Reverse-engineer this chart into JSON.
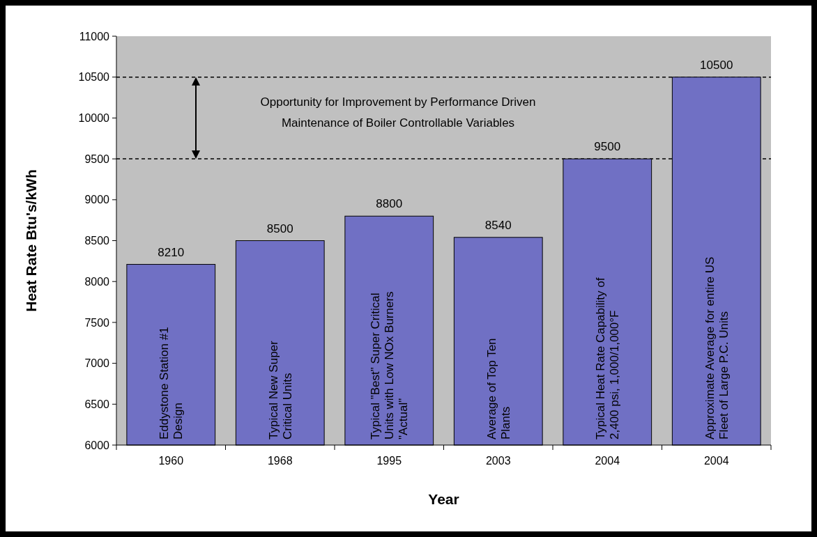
{
  "chart_data": {
    "type": "bar",
    "xlabel": "Year",
    "ylabel": "Heat Rate Btu's/kWh",
    "categories": [
      "1960",
      "1968",
      "1995",
      "2003",
      "2004",
      "2004"
    ],
    "values": [
      8210,
      8500,
      8800,
      8540,
      9500,
      10500
    ],
    "color": "#7070c4",
    "data_labels": true,
    "ylim": [
      6000,
      11000
    ],
    "yticks": [
      6000,
      6500,
      7000,
      7500,
      8000,
      8500,
      9000,
      9500,
      10000,
      10500,
      11000
    ],
    "grid": false,
    "ref_lines": [
      {
        "axis": "y",
        "value": 10500,
        "line_style": "dashed",
        "color": "#000000"
      },
      {
        "axis": "y",
        "value": 9500,
        "line_style": "dashed",
        "color": "#000000"
      }
    ],
    "annotations": [
      "Eddystone Station #1 Design",
      "Typical New Super Critical Units",
      "Typical \"Best\" Super Critical Units with Low NOx Burners \"Actual\"",
      "Average of Top Ten Plants",
      "Typical Heat Rate Capability of 2,400 psi, 1,000/1,000°F",
      "Approximate Average for entire US Fleet of Large P.C. Units",
      "Opportunity for Improvement by Performance Driven Maintenance of Boiler Controllable Variables"
    ]
  }
}
